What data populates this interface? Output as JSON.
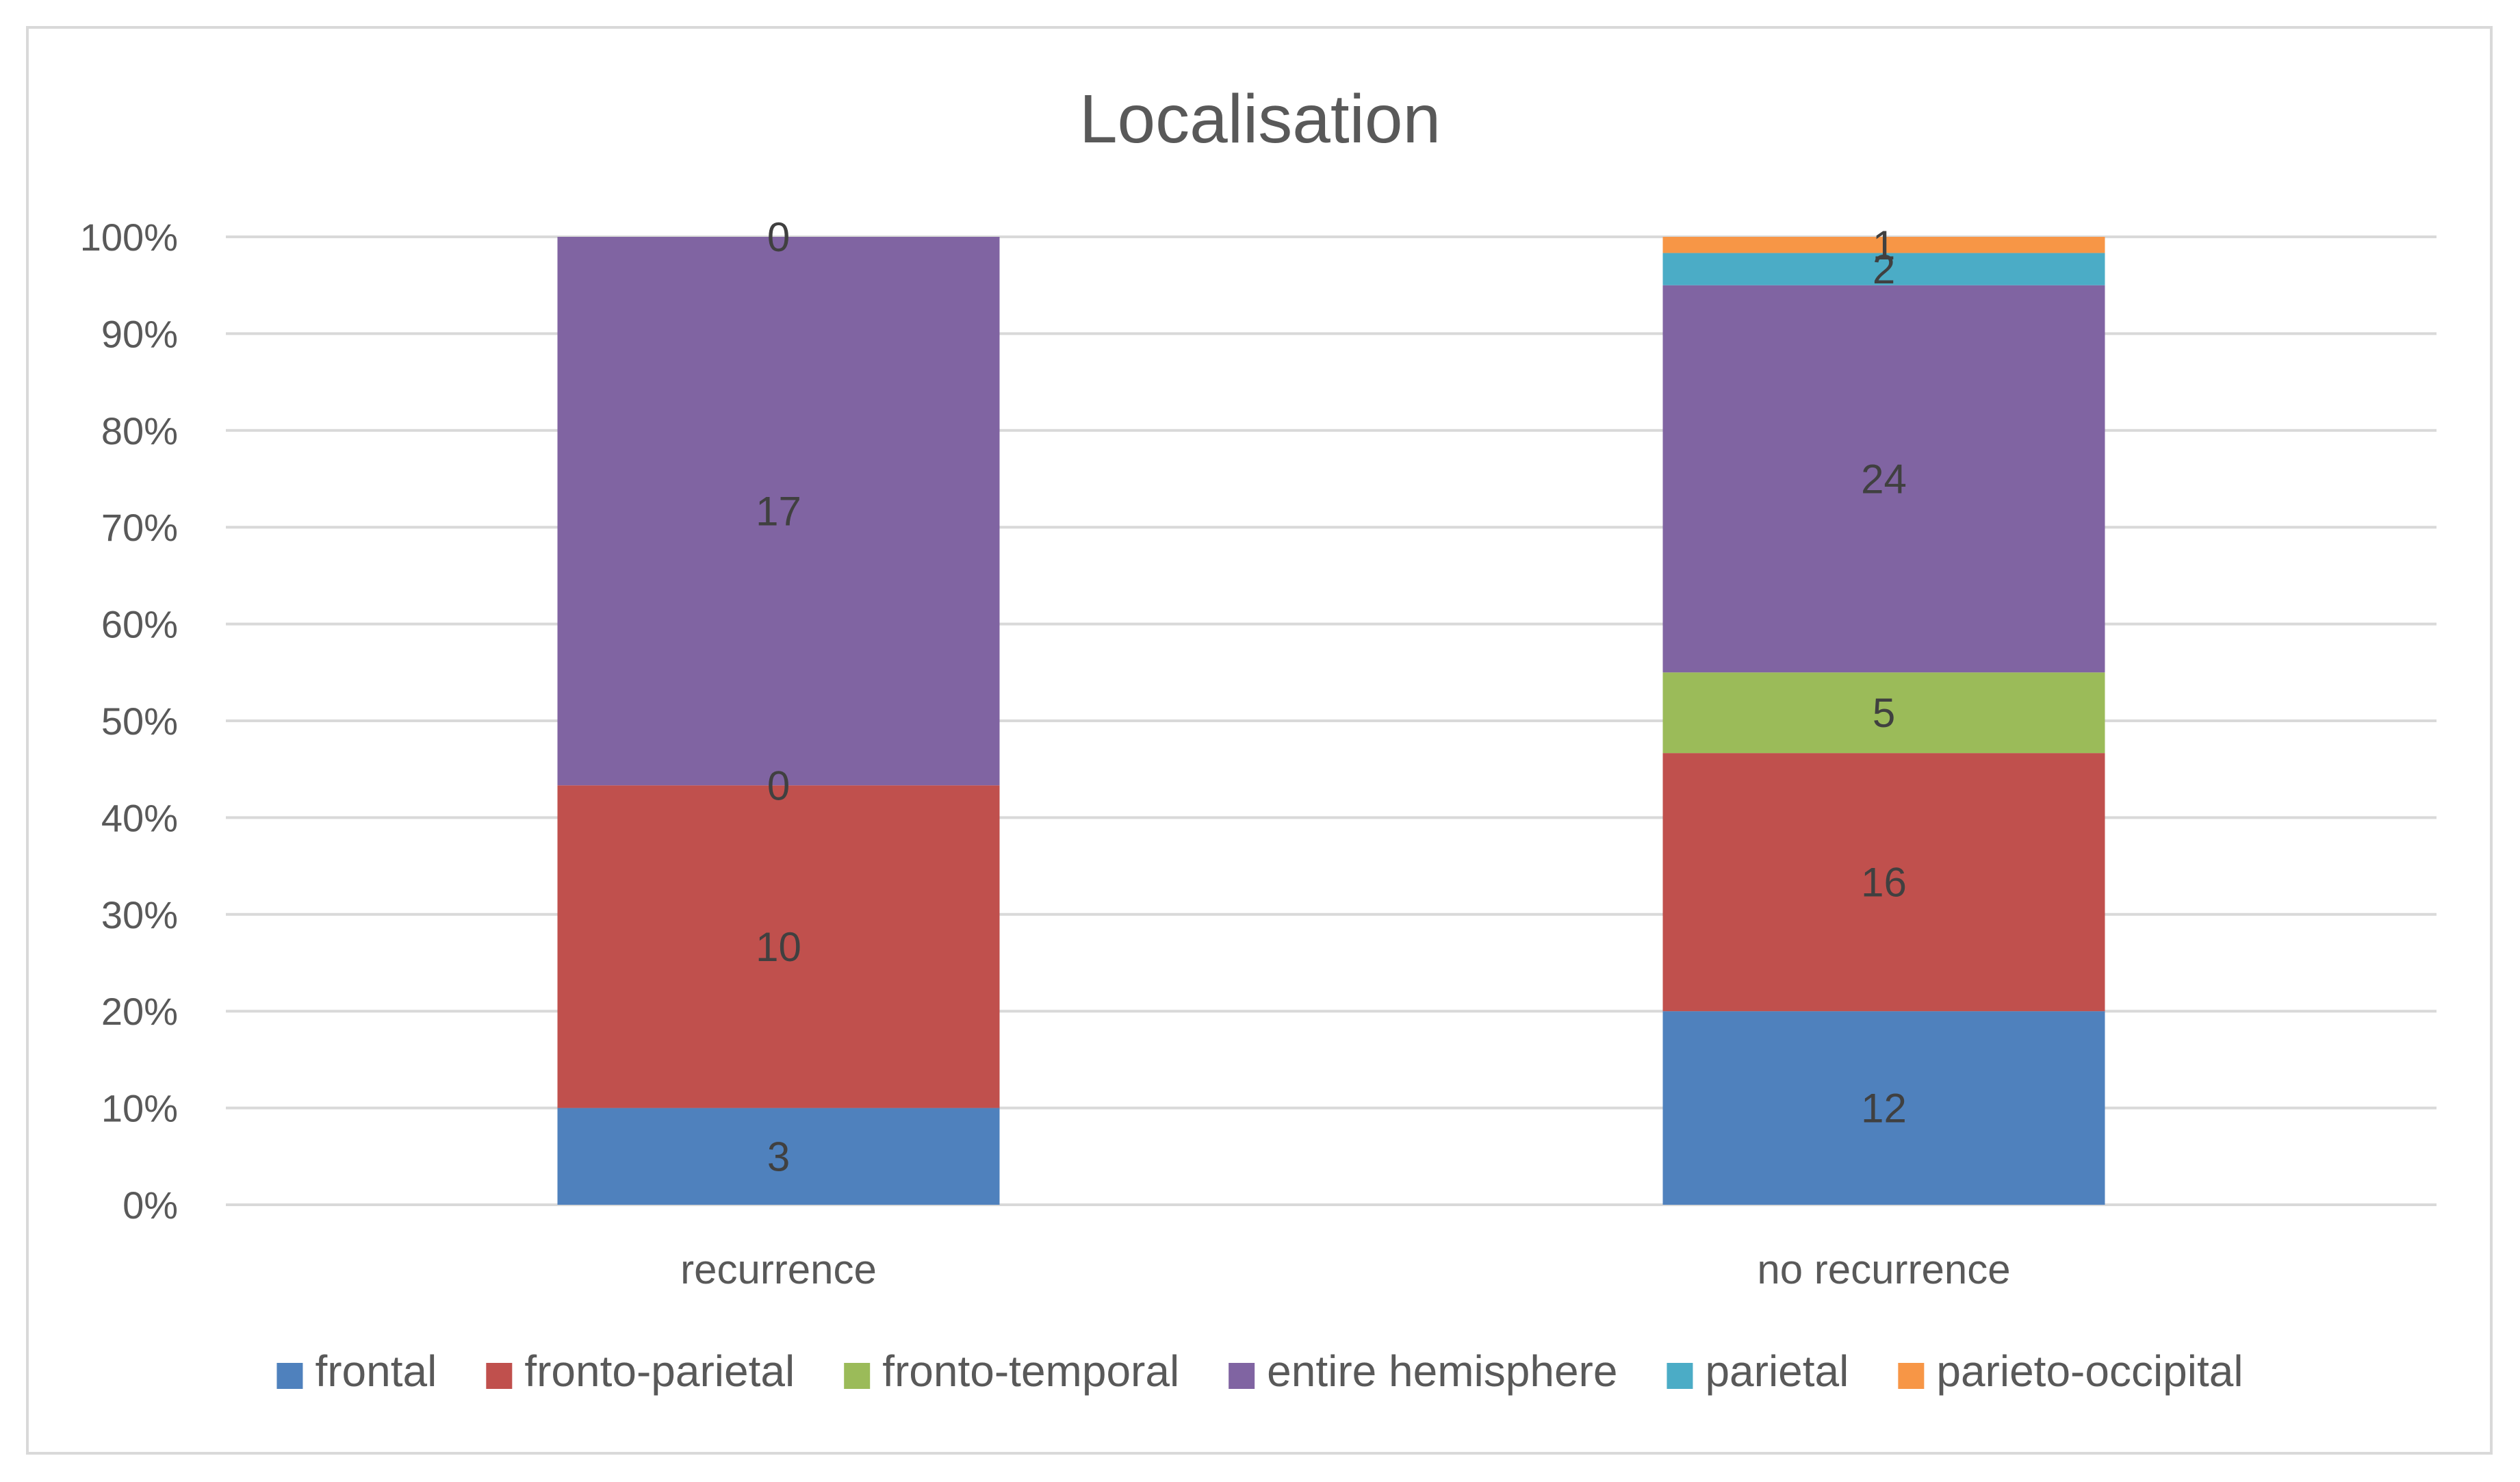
{
  "chart_data": {
    "type": "bar",
    "stacked": "percent",
    "title": "Localisation",
    "categories": [
      "recurrence",
      "no recurrence"
    ],
    "series": [
      {
        "name": "frontal",
        "color": "#4f81bd",
        "values": [
          3,
          12
        ]
      },
      {
        "name": "fronto-parietal",
        "color": "#c0504d",
        "values": [
          10,
          16
        ]
      },
      {
        "name": "fronto-temporal",
        "color": "#9bbb59",
        "values": [
          0,
          5
        ]
      },
      {
        "name": "entire hemisphere",
        "color": "#8064a2",
        "values": [
          17,
          24
        ]
      },
      {
        "name": "parietal",
        "color": "#4bacc6",
        "values": [
          0,
          2
        ]
      },
      {
        "name": "parieto-occipital",
        "color": "#f79646",
        "values": [
          0,
          1
        ]
      }
    ],
    "data_labels": [
      {
        "category": "recurrence",
        "series": "frontal",
        "text": "3"
      },
      {
        "category": "recurrence",
        "series": "fronto-parietal",
        "text": "10"
      },
      {
        "category": "recurrence",
        "series": "fronto-temporal",
        "text": "0"
      },
      {
        "category": "recurrence",
        "series": "entire hemisphere",
        "text": "17"
      },
      {
        "category": "recurrence",
        "series": "parietal",
        "text": "0"
      },
      {
        "category": "no recurrence",
        "series": "frontal",
        "text": "12"
      },
      {
        "category": "no recurrence",
        "series": "fronto-parietal",
        "text": "16"
      },
      {
        "category": "no recurrence",
        "series": "fronto-temporal",
        "text": "5"
      },
      {
        "category": "no recurrence",
        "series": "entire hemisphere",
        "text": "24"
      },
      {
        "category": "no recurrence",
        "series": "parietal",
        "text": "2"
      },
      {
        "category": "no recurrence",
        "series": "parieto-occipital",
        "text": "1"
      }
    ],
    "y_ticks": [
      "0%",
      "10%",
      "20%",
      "30%",
      "40%",
      "50%",
      "60%",
      "70%",
      "80%",
      "90%",
      "100%"
    ],
    "ylim": [
      0,
      100
    ],
    "grid": true,
    "legend_position": "bottom",
    "gridline_color": "#d9d9d9"
  }
}
